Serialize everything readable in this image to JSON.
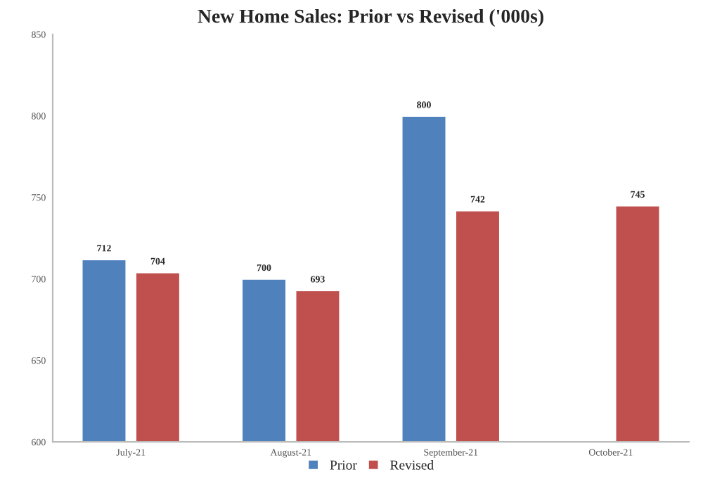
{
  "chart_data": {
    "type": "bar",
    "title": "New Home Sales: Prior vs Revised ('000s)",
    "categories": [
      "July-21",
      "August-21",
      "September-21",
      "October-21"
    ],
    "series": [
      {
        "name": "Prior",
        "color": "#4f81bd",
        "values": [
          712,
          700,
          800,
          null
        ]
      },
      {
        "name": "Revised",
        "color": "#c0504d",
        "values": [
          704,
          693,
          742,
          745
        ]
      }
    ],
    "ylim": [
      600,
      850
    ],
    "yticks": [
      600,
      650,
      700,
      750,
      800,
      850
    ],
    "data_labels": true,
    "grid": false,
    "legend": "bottom"
  }
}
